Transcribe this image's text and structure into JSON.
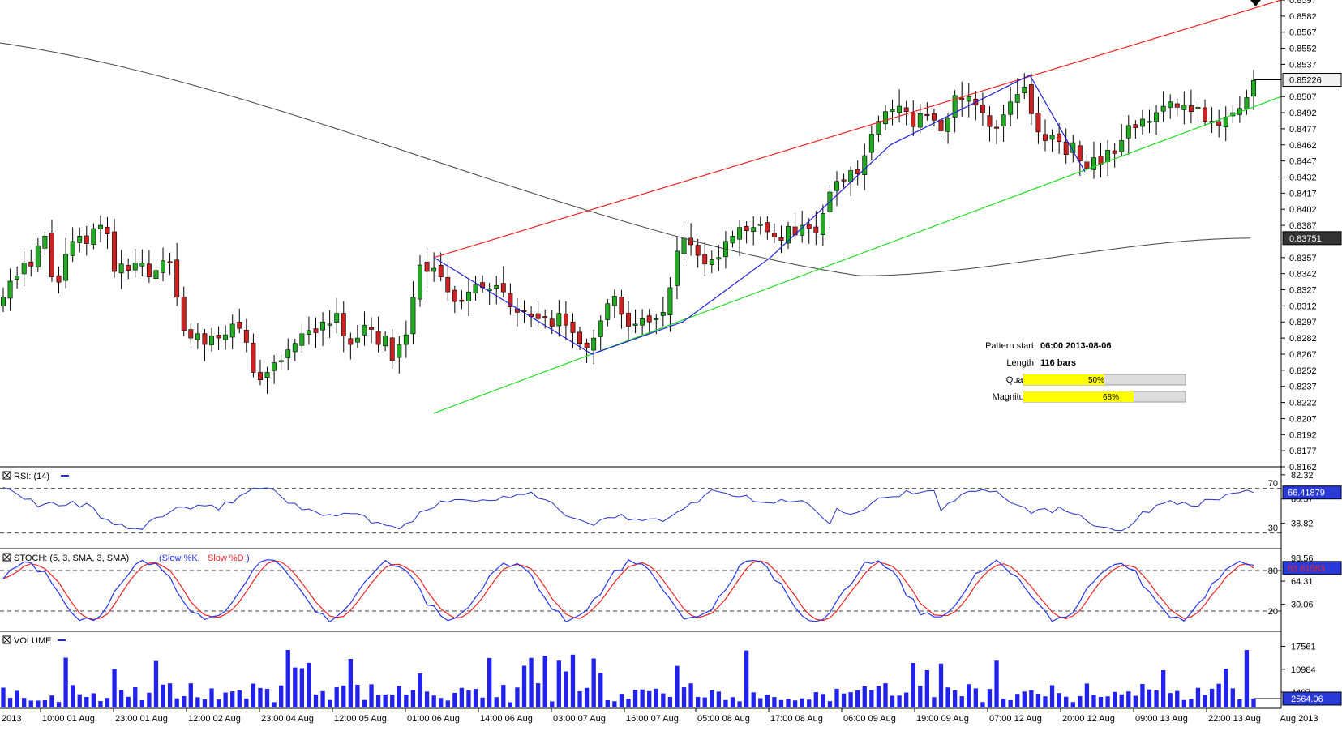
{
  "colors": {
    "bull": "#22aa22",
    "bear": "#cc2222",
    "resistance": "#ee2222",
    "support": "#22dd22",
    "pattern": "#2222dd",
    "sma": "#444444",
    "rsi": "#2233cc",
    "stoch_k": "#2233ee",
    "stoch_d": "#ee2222",
    "volume": "#2222ee",
    "bar_fill": "#ffff00",
    "bar_track": "#dddddd"
  },
  "chart_data": [
    {
      "type": "candlestick",
      "name": "price",
      "y_ticks": [
        "0.8597",
        "0.8582",
        "0.8567",
        "0.8552",
        "0.8537",
        "0.8507",
        "0.8492",
        "0.8477",
        "0.8462",
        "0.8447",
        "0.8432",
        "0.8417",
        "0.8402",
        "0.8387",
        "0.8357",
        "0.8342",
        "0.8327",
        "0.8312",
        "0.8297",
        "0.8282",
        "0.8267",
        "0.8252",
        "0.8237",
        "0.8222",
        "0.8207",
        "0.8192",
        "0.8177",
        "0.8162"
      ],
      "ylim": [
        0.8162,
        0.8597
      ],
      "last_price": "0.85226",
      "sma_value": "0.83751",
      "x_ticks": [
        "2013",
        "10:00 01 Aug",
        "23:00 01 Aug",
        "12:00 02 Aug",
        "23:00 04 Aug",
        "12:00 05 Aug",
        "01:00 06 Aug",
        "14:00 06 Aug",
        "03:00 07 Aug",
        "16:00 07 Aug",
        "05:00 08 Aug",
        "17:00 08 Aug",
        "06:00 09 Aug",
        "19:00 09 Aug",
        "07:00 12 Aug",
        "20:00 12 Aug",
        "09:00 13 Aug",
        "22:00 13 Aug",
        "Aug 2013"
      ],
      "close": [
        0.832,
        0.8335,
        0.834,
        0.8352,
        0.8349,
        0.8368,
        0.8377,
        0.8339,
        0.8334,
        0.836,
        0.8372,
        0.8377,
        0.837,
        0.8384,
        0.8387,
        0.8379,
        0.8344,
        0.8351,
        0.8345,
        0.8352,
        0.8352,
        0.8339,
        0.8345,
        0.8354,
        0.8352,
        0.832,
        0.8289,
        0.8282,
        0.8286,
        0.8276,
        0.8284,
        0.8282,
        0.8285,
        0.8295,
        0.8291,
        0.8278,
        0.825,
        0.8243,
        0.825,
        0.8259,
        0.8261,
        0.8271,
        0.8277,
        0.8286,
        0.8289,
        0.8287,
        0.8297,
        0.8295,
        0.8305,
        0.8284,
        0.8276,
        0.8282,
        0.8294,
        0.829,
        0.8276,
        0.8284,
        0.8261,
        0.8276,
        0.8285,
        0.832,
        0.835,
        0.8344,
        0.8347,
        0.8339,
        0.8325,
        0.8316,
        0.8316,
        0.8325,
        0.8332,
        0.8329,
        0.8328,
        0.8331,
        0.8325,
        0.8311,
        0.8306,
        0.8307,
        0.8302,
        0.83,
        0.8302,
        0.8293,
        0.8305,
        0.8294,
        0.8287,
        0.8277,
        0.8273,
        0.8282,
        0.8298,
        0.8314,
        0.8321,
        0.8304,
        0.8293,
        0.8295,
        0.83,
        0.8297,
        0.83,
        0.8306,
        0.8329,
        0.8363,
        0.8375,
        0.8369,
        0.8359,
        0.8351,
        0.8355,
        0.8357,
        0.8372,
        0.8377,
        0.8385,
        0.8382,
        0.8385,
        0.8388,
        0.8381,
        0.8376,
        0.8373,
        0.8386,
        0.8378,
        0.8387,
        0.8384,
        0.838,
        0.8398,
        0.8418,
        0.8428,
        0.8429,
        0.8438,
        0.8435,
        0.8452,
        0.8472,
        0.8484,
        0.8493,
        0.8495,
        0.8498,
        0.8493,
        0.8479,
        0.8491,
        0.849,
        0.8485,
        0.8475,
        0.8487,
        0.8508,
        0.8504,
        0.8507,
        0.8499,
        0.8492,
        0.8479,
        0.8478,
        0.849,
        0.8502,
        0.8509,
        0.8516,
        0.8491,
        0.8474,
        0.8466,
        0.8471,
        0.8465,
        0.8453,
        0.8464,
        0.8447,
        0.844,
        0.845,
        0.8444,
        0.8457,
        0.8454,
        0.8466,
        0.848,
        0.8478,
        0.8486,
        0.8484,
        0.8492,
        0.8498,
        0.8502,
        0.8497,
        0.8499,
        0.8493,
        0.8497,
        0.8484,
        0.8484,
        0.848,
        0.8488,
        0.8492,
        0.8496,
        0.8506,
        0.8522
      ],
      "resistance_line": {
        "from": [
          "06:00 2013-08-06",
          0.8357
        ],
        "to": [
          "Aug 2013",
          0.8597
        ]
      },
      "support_line": {
        "from": [
          "06:00 2013-08-06",
          0.8212
        ],
        "to": [
          "Aug 2013",
          0.8507
        ]
      },
      "pattern": {
        "start": "06:00 2013-08-06",
        "length": "116 bars",
        "quality": 0.5,
        "quality_label": "50%",
        "magnitude": 0.68,
        "magnitude_label": "68%",
        "labels": {
          "start": "Pattern start",
          "length": "Length",
          "quality": "Quality",
          "magnitude": "Magnitude"
        }
      }
    },
    {
      "type": "line",
      "name": "rsi",
      "title": "RSI: (14)",
      "ticks": [
        "82.32",
        "60.57",
        "38.82"
      ],
      "levels": [
        "70",
        "30"
      ],
      "ylim": [
        16,
        88
      ],
      "current": "66.41879"
    },
    {
      "type": "line",
      "name": "stoch",
      "title": "STOCH: (5, 3, SMA, 3, SMA)",
      "series_labels": [
        "Slow %K",
        "Slow %D"
      ],
      "ticks": [
        "98.56",
        "64.31",
        "30.06"
      ],
      "levels": [
        "80",
        "20"
      ],
      "ylim": [
        -10,
        110
      ],
      "current": "83.81583"
    },
    {
      "type": "bar",
      "name": "volume",
      "title": "VOLUME",
      "ticks": [
        "17561",
        "10984",
        "4407"
      ],
      "current": "2564.06",
      "ylim": [
        0,
        20000
      ]
    }
  ]
}
